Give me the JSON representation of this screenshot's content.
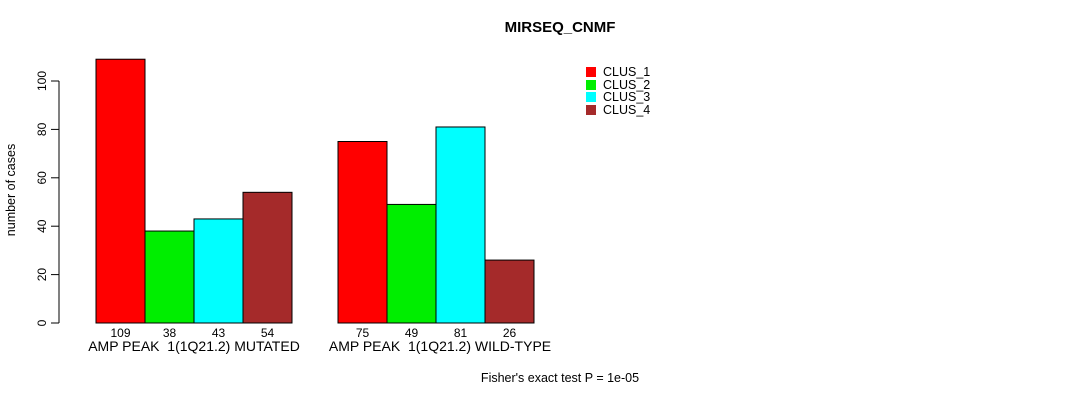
{
  "chart_data": {
    "type": "bar",
    "title": "MIRSEQ_CNMF",
    "xlabel": "",
    "ylabel": "number of cases",
    "ylim": [
      0,
      100
    ],
    "yticks": [
      0,
      20,
      40,
      60,
      80,
      100
    ],
    "grid": false,
    "legend_position": "top-right",
    "categories": [
      "AMP PEAK  1(1Q21.2) MUTATED",
      "AMP PEAK  1(1Q21.2) WILD-TYPE"
    ],
    "series": [
      {
        "name": "CLUS_1",
        "color": "#ff0000",
        "values": [
          109,
          75
        ]
      },
      {
        "name": "CLUS_2",
        "color": "#00ee00",
        "values": [
          38,
          49
        ]
      },
      {
        "name": "CLUS_3",
        "color": "#00ffff",
        "values": [
          43,
          81
        ]
      },
      {
        "name": "CLUS_4",
        "color": "#a52a2a",
        "values": [
          54,
          26
        ]
      }
    ],
    "bar_labels": [
      [
        "109",
        "38",
        "43",
        "54"
      ],
      [
        "75",
        "49",
        "81",
        "26"
      ]
    ],
    "annotation": "Fisher's exact test P = 1e-05",
    "axis_color": "#000000",
    "bar_border_color": "#000000",
    "background_color": "#ffffff"
  }
}
